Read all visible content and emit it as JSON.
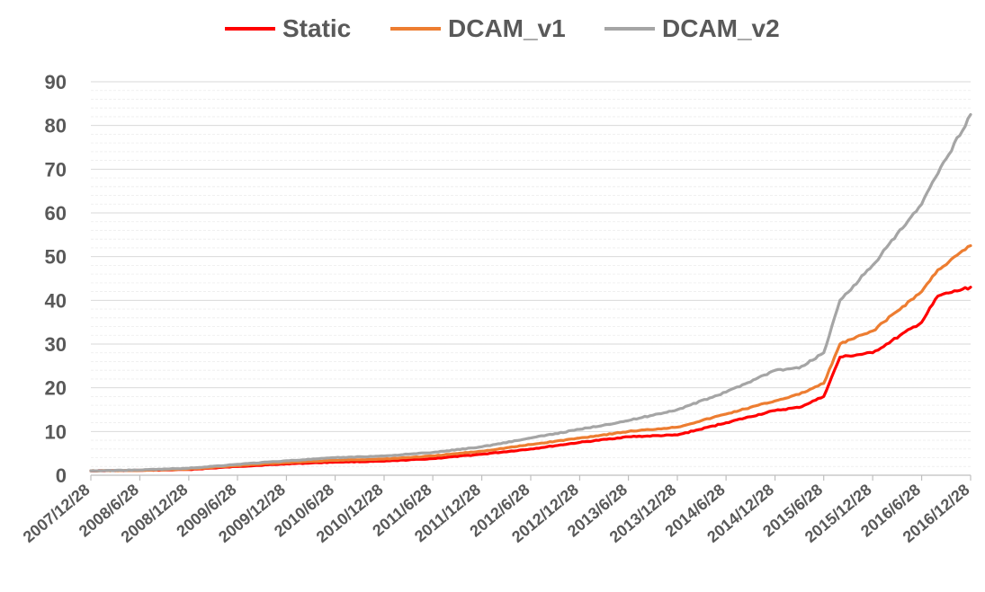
{
  "chart_data": {
    "type": "line",
    "title": "",
    "xlabel": "",
    "ylabel": "",
    "ylim": [
      0,
      90
    ],
    "yticks": [
      0,
      10,
      20,
      30,
      40,
      50,
      60,
      70,
      80,
      90
    ],
    "grid": true,
    "legend_position": "top",
    "x_tick_labels": [
      "2007/12/28",
      "2008/6/28",
      "2008/12/28",
      "2009/6/28",
      "2009/12/28",
      "2010/6/28",
      "2010/12/28",
      "2011/6/28",
      "2011/12/28",
      "2012/6/28",
      "2012/12/28",
      "2013/6/28",
      "2013/12/28",
      "2014/6/28",
      "2014/12/28",
      "2015/6/28",
      "2015/12/28",
      "2016/6/28",
      "2016/12/28"
    ],
    "x": [
      "2007/12/28",
      "2008/6/28",
      "2008/12/28",
      "2009/6/28",
      "2009/12/28",
      "2010/6/28",
      "2010/12/28",
      "2011/6/28",
      "2011/12/28",
      "2012/6/28",
      "2012/12/28",
      "2013/6/28",
      "2013/12/28",
      "2014/6/28",
      "2014/12/28",
      "2015/3/28",
      "2015/6/28",
      "2015/8/28",
      "2015/12/28",
      "2016/6/28",
      "2016/8/28",
      "2016/12/28"
    ],
    "series": [
      {
        "name": "Static",
        "color": "#ff0000",
        "values": [
          1.0,
          1.1,
          1.3,
          2.0,
          2.6,
          3.0,
          3.2,
          3.8,
          4.8,
          6.0,
          7.5,
          8.8,
          9.2,
          12.0,
          14.8,
          15.5,
          18.0,
          27.0,
          28.0,
          35.0,
          41.0,
          43.0
        ]
      },
      {
        "name": "DCAM_v1",
        "color": "#ed7d31",
        "values": [
          1.0,
          1.1,
          1.4,
          2.2,
          2.9,
          3.4,
          3.7,
          4.4,
          5.5,
          7.0,
          8.5,
          10.0,
          11.0,
          14.0,
          17.0,
          18.5,
          21.0,
          30.0,
          33.0,
          42.0,
          47.0,
          52.5
        ]
      },
      {
        "name": "DCAM_v2",
        "color": "#a5a5a5",
        "values": [
          1.0,
          1.2,
          1.6,
          2.5,
          3.3,
          4.0,
          4.4,
          5.2,
          6.5,
          8.5,
          10.5,
          12.5,
          15.0,
          19.0,
          24.0,
          24.5,
          28.0,
          40.0,
          48.0,
          62.0,
          69.0,
          82.5
        ]
      }
    ]
  }
}
